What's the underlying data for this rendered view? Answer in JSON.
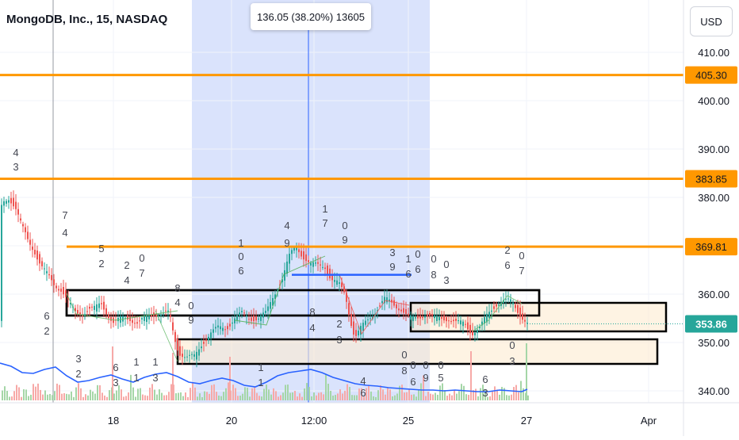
{
  "header": {
    "title": "MongoDB, Inc., 15, NASDAQ",
    "currency_button": "USD"
  },
  "measure_tooltip": "136.05 (38.20%) 13605",
  "colors": {
    "up": "#26a69a",
    "down": "#ef5350",
    "level": "#ff9800",
    "price_badge": "#26a69a",
    "measure_bg": "#cdd9fb",
    "volume_ma": "#2962ff"
  },
  "chart_data": {
    "type": "candlestick",
    "symbol": "MongoDB, Inc.",
    "interval": "15",
    "exchange": "NASDAQ",
    "ylim": [
      338,
      413
    ],
    "x_ticks": [
      "18",
      "20",
      "12:00",
      "25",
      "27",
      "Apr"
    ],
    "y_ticks": [
      "410.00",
      "400.00",
      "390.00",
      "380.00",
      "370.00",
      "360.00",
      "350.00",
      "340.00"
    ],
    "last_price": "353.86",
    "horizontal_levels": [
      {
        "value": 405.3,
        "label": "405.30"
      },
      {
        "value": 383.85,
        "label": "383.85"
      },
      {
        "value": 369.81,
        "label": "369.81"
      }
    ],
    "trend_line": {
      "value": 364.0
    },
    "price_path": [
      [
        0,
        377
      ],
      [
        5,
        379
      ],
      [
        12,
        380
      ],
      [
        20,
        378
      ],
      [
        28,
        374
      ],
      [
        36,
        371
      ],
      [
        44,
        369
      ],
      [
        52,
        366
      ],
      [
        60,
        364
      ],
      [
        68,
        362
      ],
      [
        78,
        361
      ],
      [
        88,
        358
      ],
      [
        96,
        356
      ],
      [
        104,
        356
      ],
      [
        112,
        357
      ],
      [
        120,
        357
      ],
      [
        128,
        358
      ],
      [
        136,
        356
      ],
      [
        144,
        354
      ],
      [
        154,
        355
      ],
      [
        164,
        355
      ],
      [
        174,
        354
      ],
      [
        184,
        355
      ],
      [
        196,
        356
      ],
      [
        206,
        356
      ],
      [
        214,
        356
      ],
      [
        220,
        351
      ],
      [
        226,
        348
      ],
      [
        236,
        347
      ],
      [
        246,
        347
      ],
      [
        256,
        350
      ],
      [
        266,
        352
      ],
      [
        276,
        353
      ],
      [
        286,
        353
      ],
      [
        296,
        355
      ],
      [
        306,
        356
      ],
      [
        316,
        355
      ],
      [
        326,
        355
      ],
      [
        336,
        356
      ],
      [
        346,
        360
      ],
      [
        356,
        363
      ],
      [
        366,
        368
      ],
      [
        374,
        370
      ],
      [
        382,
        368
      ],
      [
        392,
        366
      ],
      [
        400,
        366
      ],
      [
        410,
        366
      ],
      [
        418,
        363
      ],
      [
        428,
        362
      ],
      [
        436,
        360
      ],
      [
        442,
        355
      ],
      [
        448,
        351
      ],
      [
        456,
        353
      ],
      [
        466,
        355
      ],
      [
        476,
        357
      ],
      [
        486,
        359
      ],
      [
        496,
        358
      ],
      [
        506,
        357
      ],
      [
        516,
        355
      ],
      [
        526,
        355
      ],
      [
        536,
        356
      ],
      [
        546,
        355
      ],
      [
        556,
        355
      ],
      [
        566,
        355
      ],
      [
        576,
        354
      ],
      [
        586,
        354
      ],
      [
        596,
        352
      ],
      [
        606,
        353
      ],
      [
        616,
        356
      ],
      [
        626,
        358
      ],
      [
        636,
        358.5
      ],
      [
        646,
        358.5
      ],
      [
        656,
        356
      ],
      [
        665,
        353.86
      ]
    ],
    "volume_ma": [
      [
        0,
        458
      ],
      [
        14,
        462
      ],
      [
        28,
        470
      ],
      [
        42,
        471
      ],
      [
        56,
        466
      ],
      [
        70,
        463
      ],
      [
        84,
        474
      ],
      [
        98,
        482
      ],
      [
        112,
        480
      ],
      [
        126,
        476
      ],
      [
        140,
        473
      ],
      [
        154,
        478
      ],
      [
        168,
        482
      ],
      [
        182,
        476
      ],
      [
        196,
        472
      ],
      [
        210,
        470
      ],
      [
        224,
        475
      ],
      [
        238,
        482
      ],
      [
        252,
        484
      ],
      [
        266,
        480
      ],
      [
        280,
        477
      ],
      [
        294,
        480
      ],
      [
        308,
        486
      ],
      [
        322,
        488
      ],
      [
        336,
        482
      ],
      [
        350,
        474
      ],
      [
        364,
        470
      ],
      [
        378,
        468
      ],
      [
        392,
        466
      ],
      [
        406,
        470
      ],
      [
        420,
        476
      ],
      [
        434,
        480
      ],
      [
        448,
        484
      ],
      [
        462,
        486
      ],
      [
        476,
        487
      ],
      [
        490,
        489
      ],
      [
        504,
        490
      ],
      [
        518,
        491
      ],
      [
        532,
        492
      ],
      [
        546,
        492
      ],
      [
        560,
        493
      ],
      [
        574,
        492
      ],
      [
        588,
        493
      ],
      [
        602,
        494
      ],
      [
        616,
        494
      ],
      [
        630,
        492
      ],
      [
        644,
        493
      ],
      [
        658,
        494
      ],
      [
        665,
        491
      ]
    ],
    "annotations": [
      [
        "4",
        20,
        197
      ],
      [
        "3",
        20,
        215
      ],
      [
        "7",
        82,
        276
      ],
      [
        "4",
        82,
        298
      ],
      [
        "5",
        128,
        318
      ],
      [
        "2",
        128,
        337
      ],
      [
        "2",
        160,
        339
      ],
      [
        "4",
        160,
        358
      ],
      [
        "0",
        179,
        330
      ],
      [
        "7",
        179,
        349
      ],
      [
        "8",
        224,
        368
      ],
      [
        "4",
        224,
        386
      ],
      [
        "0",
        241,
        390
      ],
      [
        "9",
        241,
        408
      ],
      [
        "6",
        59,
        403
      ],
      [
        "2",
        59,
        422
      ],
      [
        "1",
        304,
        311
      ],
      [
        "0",
        304,
        328
      ],
      [
        "6",
        304,
        346
      ],
      [
        "4",
        362,
        289
      ],
      [
        "9",
        362,
        311
      ],
      [
        "1",
        410,
        268
      ],
      [
        "7",
        410,
        286
      ],
      [
        "0",
        435,
        289
      ],
      [
        "9",
        435,
        307
      ],
      [
        "3",
        495,
        323
      ],
      [
        "9",
        495,
        341
      ],
      [
        "1",
        515,
        331
      ],
      [
        "6",
        515,
        350
      ],
      [
        "0",
        527,
        325
      ],
      [
        "6",
        527,
        344
      ],
      [
        "0",
        547,
        331
      ],
      [
        "8",
        547,
        351
      ],
      [
        "0",
        563,
        338
      ],
      [
        "3",
        563,
        358
      ],
      [
        "2",
        640,
        320
      ],
      [
        "6",
        640,
        339
      ],
      [
        "0",
        658,
        327
      ],
      [
        "7",
        658,
        346
      ],
      [
        "8",
        394,
        398
      ],
      [
        "4",
        394,
        418
      ],
      [
        "2",
        428,
        413
      ],
      [
        "3",
        428,
        433
      ],
      [
        "0",
        646,
        440
      ],
      [
        "3",
        646,
        460
      ],
      [
        "3",
        99,
        457
      ],
      [
        "2",
        99,
        476
      ],
      [
        "6",
        146,
        468
      ],
      [
        "3",
        146,
        487
      ],
      [
        "1",
        172,
        461
      ],
      [
        "1",
        172,
        481
      ],
      [
        "1",
        196,
        461
      ],
      [
        "3",
        196,
        481
      ],
      [
        "1",
        329,
        468
      ],
      [
        "1",
        329,
        487
      ],
      [
        "0",
        510,
        452
      ],
      [
        "8",
        510,
        472
      ],
      [
        "0",
        521,
        465
      ],
      [
        "6",
        521,
        486
      ],
      [
        "0",
        537,
        465
      ],
      [
        "9",
        537,
        481
      ],
      [
        "0",
        556,
        465
      ],
      [
        "5",
        556,
        481
      ],
      [
        "4",
        458,
        485
      ],
      [
        "6",
        458,
        500
      ],
      [
        "6",
        612,
        483
      ],
      [
        "3",
        612,
        500
      ]
    ]
  }
}
